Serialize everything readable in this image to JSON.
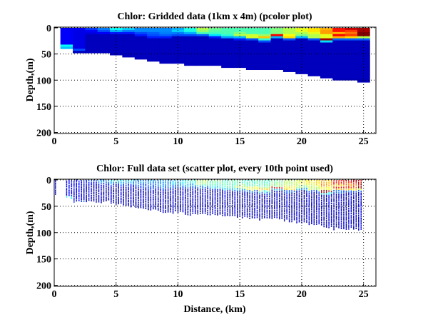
{
  "chart_data": [
    {
      "type": "heatmap",
      "title": "Chlor: Gridded data (1km x 4m) (pcolor plot)",
      "xlabel": "",
      "ylabel": "Depth,(m)",
      "xlim": [
        0,
        26
      ],
      "ylim": [
        0,
        202
      ],
      "y_reversed": true,
      "grid": true,
      "colormap": "jet",
      "xticks": [
        "0",
        "5",
        "10",
        "15",
        "20",
        "25"
      ],
      "yticks": [
        "0",
        "50",
        "100",
        "150",
        "200"
      ],
      "cell_size_km": 1,
      "cell_size_m": 4,
      "columns": [
        {
          "x": 1,
          "bottom": 40,
          "top_values": [
            0.12,
            0.12,
            0.12,
            0.12,
            0.12,
            0.12,
            0.12,
            0.12,
            0.38,
            0.32
          ]
        },
        {
          "x": 2,
          "bottom": 48,
          "top_values": [
            0.12,
            0.1,
            0.1,
            0.1,
            0.1,
            0.1,
            0.1,
            0.1,
            0.1,
            0.1,
            0.2
          ]
        },
        {
          "x": 3,
          "bottom": 48,
          "top_values": [
            0.18,
            0.12,
            0.1
          ]
        },
        {
          "x": 4,
          "bottom": 48,
          "top_values": [
            0.25,
            0.2,
            0.12
          ]
        },
        {
          "x": 5,
          "bottom": 52,
          "top_values": [
            0.38,
            0.3,
            0.15
          ]
        },
        {
          "x": 6,
          "bottom": 56,
          "top_values": [
            0.33,
            0.25,
            0.15
          ]
        },
        {
          "x": 7,
          "bottom": 60,
          "top_values": [
            0.26,
            0.26,
            0.2,
            0.15
          ]
        },
        {
          "x": 8,
          "bottom": 64,
          "top_values": [
            0.26,
            0.26,
            0.22,
            0.2,
            0.15
          ]
        },
        {
          "x": 9,
          "bottom": 68,
          "top_values": [
            0.26,
            0.26,
            0.25,
            0.22,
            0.15
          ]
        },
        {
          "x": 10,
          "bottom": 68,
          "top_values": [
            0.3,
            0.33,
            0.25,
            0.2
          ]
        },
        {
          "x": 11,
          "bottom": 72,
          "top_values": [
            0.4,
            0.4,
            0.3,
            0.2
          ]
        },
        {
          "x": 12,
          "bottom": 72,
          "top_values": [
            0.55,
            0.52,
            0.45,
            0.22
          ]
        },
        {
          "x": 13,
          "bottom": 72,
          "top_values": [
            0.48,
            0.46,
            0.44,
            0.35,
            0.15
          ]
        },
        {
          "x": 14,
          "bottom": 76,
          "top_values": [
            0.45,
            0.45,
            0.45,
            0.42,
            0.28
          ]
        },
        {
          "x": 15,
          "bottom": 76,
          "top_values": [
            0.45,
            0.45,
            0.5,
            0.55,
            0.3,
            0.15
          ]
        },
        {
          "x": 16,
          "bottom": 80,
          "top_values": [
            0.45,
            0.45,
            0.45,
            0.58,
            0.58,
            0.2
          ]
        },
        {
          "x": 17,
          "bottom": 80,
          "top_values": [
            0.45,
            0.45,
            0.45,
            0.52,
            0.68,
            0.42,
            0.2
          ]
        },
        {
          "x": 18,
          "bottom": 80,
          "top_values": [
            0.5,
            0.5,
            0.5,
            0.88,
            0.3
          ]
        },
        {
          "x": 19,
          "bottom": 84,
          "top_values": [
            0.55,
            0.55,
            0.55,
            0.62,
            0.66,
            0.2
          ]
        },
        {
          "x": 20,
          "bottom": 88,
          "top_values": [
            0.6,
            0.6,
            0.55,
            0.5,
            0.3
          ]
        },
        {
          "x": 21,
          "bottom": 92,
          "top_values": [
            0.65,
            0.65,
            0.6,
            0.55,
            0.55,
            0.2
          ]
        },
        {
          "x": 22,
          "bottom": 96,
          "top_values": [
            0.7,
            0.72,
            0.72,
            0.6,
            0.6,
            0.97,
            0.35
          ]
        },
        {
          "x": 23,
          "bottom": 100,
          "top_values": [
            0.86,
            0.86,
            0.7,
            0.88,
            0.7,
            0.22
          ]
        },
        {
          "x": 24,
          "bottom": 100,
          "top_values": [
            0.92,
            0.82,
            0.76,
            0.82,
            0.66,
            0.22
          ]
        },
        {
          "x": 25,
          "bottom": 104,
          "top_values": [
            0.96,
            0.96,
            1.0,
            1.0,
            0.55,
            0.22
          ]
        }
      ],
      "deep_value": 0.06
    },
    {
      "type": "scatter",
      "title": "Chlor: Full data set (scatter plot, every 10th point used)",
      "xlabel": "Distance, (km)",
      "ylabel": "Depth,(m)",
      "xlim": [
        0,
        26
      ],
      "ylim": [
        0,
        202
      ],
      "y_reversed": true,
      "grid": true,
      "colormap": "jet",
      "xticks": [
        "0",
        "5",
        "10",
        "15",
        "20",
        "25"
      ],
      "yticks": [
        "0",
        "50",
        "100",
        "150",
        "200"
      ]
    }
  ]
}
